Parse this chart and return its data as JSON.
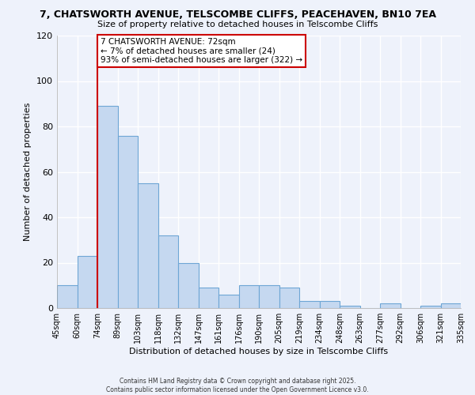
{
  "title1": "7, CHATSWORTH AVENUE, TELSCOMBE CLIFFS, PEACEHAVEN, BN10 7EA",
  "title2": "Size of property relative to detached houses in Telscombe Cliffs",
  "xlabel": "Distribution of detached houses by size in Telscombe Cliffs",
  "ylabel": "Number of detached properties",
  "bar_values": [
    10,
    23,
    89,
    76,
    55,
    32,
    20,
    9,
    6,
    10,
    10,
    9,
    3,
    3,
    1,
    0,
    2,
    0,
    1,
    2
  ],
  "bar_labels": [
    "45sqm",
    "60sqm",
    "74sqm",
    "89sqm",
    "103sqm",
    "118sqm",
    "132sqm",
    "147sqm",
    "161sqm",
    "176sqm",
    "190sqm",
    "205sqm",
    "219sqm",
    "234sqm",
    "248sqm",
    "263sqm",
    "277sqm",
    "292sqm",
    "306sqm",
    "321sqm",
    "335sqm"
  ],
  "bar_color": "#c5d8f0",
  "bar_edge_color": "#6ea6d5",
  "vline_x_idx": 2,
  "vline_color": "#cc0000",
  "annotation_title": "7 CHATSWORTH AVENUE: 72sqm",
  "annotation_line1": "← 7% of detached houses are smaller (24)",
  "annotation_line2": "93% of semi-detached houses are larger (322) →",
  "annotation_box_color": "#ffffff",
  "annotation_box_edge": "#cc0000",
  "ylim": [
    0,
    120
  ],
  "yticks": [
    0,
    20,
    40,
    60,
    80,
    100,
    120
  ],
  "footer1": "Contains HM Land Registry data © Crown copyright and database right 2025.",
  "footer2": "Contains public sector information licensed under the Open Government Licence v3.0.",
  "background_color": "#eef2fb",
  "grid_color": "#ffffff",
  "title1_fontsize": 9,
  "title2_fontsize": 8,
  "ylabel_fontsize": 8,
  "xlabel_fontsize": 8,
  "tick_fontsize": 7,
  "footer_fontsize": 5.5
}
